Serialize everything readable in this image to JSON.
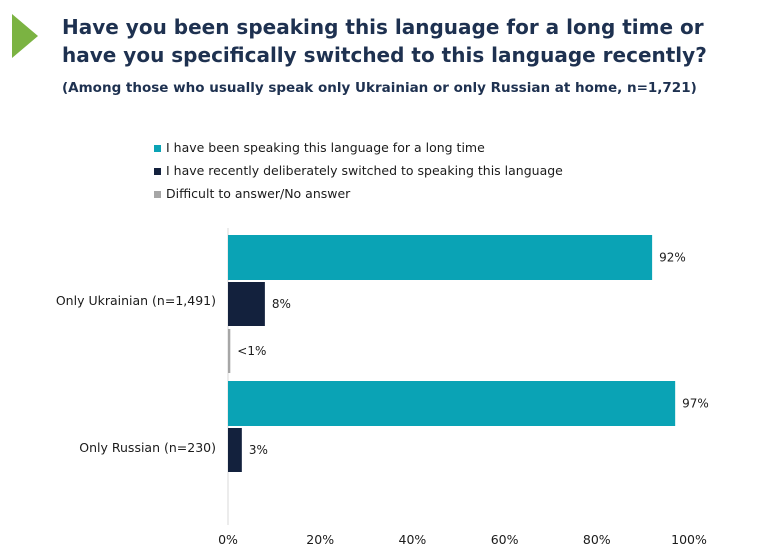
{
  "header": {
    "title_line1": "Have you been speaking this language for a long time or",
    "title_line2": "have you specifically switched to this language recently?",
    "subtitle": "(Among those who usually speak only Ukrainian or only Russian at home, n=1,721)",
    "accent_color": "#7bb342"
  },
  "chart_data": {
    "type": "bar",
    "orientation": "horizontal",
    "categories": [
      "Only Ukrainian (n=1,491)",
      "Only Russian (n=230)"
    ],
    "series": [
      {
        "name": "I have been speaking this language for a long time",
        "color": "#0aa3b5",
        "values": [
          92,
          97
        ],
        "labels": [
          "92%",
          "97%"
        ]
      },
      {
        "name": "I have recently deliberately switched to speaking this language",
        "color": "#13213d",
        "values": [
          8,
          3
        ],
        "labels": [
          "8%",
          "3%"
        ]
      },
      {
        "name": "Difficult to answer/No answer",
        "color": "#a6a6a6",
        "values": [
          0.5,
          null
        ],
        "labels": [
          "<1%",
          null
        ]
      }
    ],
    "xlim": [
      0,
      100
    ],
    "xticks": [
      0,
      20,
      40,
      60,
      80,
      100
    ],
    "xtick_labels": [
      "0%",
      "20%",
      "40%",
      "60%",
      "80%",
      "100%"
    ],
    "legend_position": "top",
    "grid": false
  }
}
